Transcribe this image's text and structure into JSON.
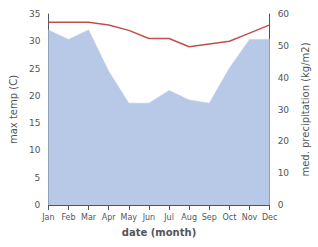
{
  "chart_data": {
    "type": "line",
    "xlabel": "date (month)",
    "ylabel": "max temp (C)",
    "y2label": "med. precipitation (kg/m2)",
    "categories": [
      "Jan",
      "Feb",
      "Mar",
      "Apr",
      "May",
      "Jun",
      "Jul",
      "Aug",
      "Sep",
      "Oct",
      "Nov",
      "Dec"
    ],
    "series": [
      {
        "type": "area",
        "axis": "y2",
        "color": "#b8c9e8",
        "values": [
          55.0,
          52.0,
          55.0,
          42.0,
          32.0,
          32.0,
          36.0,
          33.0,
          32.0,
          43.0,
          52.0,
          52.0
        ]
      },
      {
        "type": "line",
        "color": "#c0504d",
        "values": [
          33.5,
          33.5,
          33.5,
          33.0,
          32.0,
          30.5,
          30.5,
          29.0,
          29.5,
          30.0,
          31.5,
          33.0
        ]
      }
    ],
    "ylim": [
      0,
      35
    ],
    "yticks": [
      0,
      5,
      10,
      15,
      20,
      25,
      30,
      35
    ],
    "y2lim": [
      0,
      60
    ],
    "y2ticks": [
      0,
      10,
      20,
      30,
      40,
      50,
      60
    ],
    "grid": false
  }
}
